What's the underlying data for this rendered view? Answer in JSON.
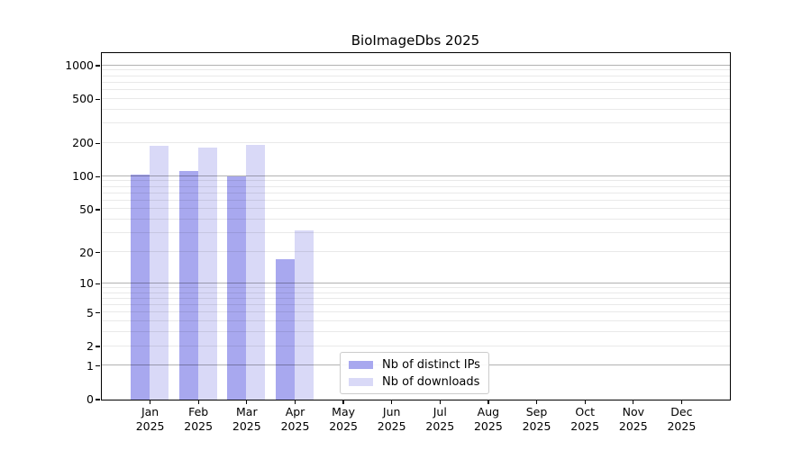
{
  "title": "BioImageDbs 2025",
  "chart_data": {
    "type": "bar",
    "title": "BioImageDbs 2025",
    "xlabel": "",
    "ylabel": "",
    "categories": [
      "Jan",
      "Feb",
      "Mar",
      "Apr",
      "May",
      "Jun",
      "Jul",
      "Aug",
      "Sep",
      "Oct",
      "Nov",
      "Dec"
    ],
    "category_sublabel": "2025",
    "series": [
      {
        "name": "Nb of distinct IPs",
        "color": "#a8a8ef",
        "values": [
          104,
          112,
          100,
          17,
          0,
          0,
          0,
          0,
          0,
          0,
          0,
          0
        ]
      },
      {
        "name": "Nb of downloads",
        "color": "#d9d9f7",
        "values": [
          190,
          183,
          192,
          32,
          0,
          0,
          0,
          0,
          0,
          0,
          0,
          0
        ]
      }
    ],
    "yscale": "log1p",
    "ylim": [
      0,
      1300
    ],
    "yticks": [
      0,
      1,
      2,
      5,
      10,
      20,
      50,
      100,
      200,
      500,
      1000
    ],
    "major_gridlines": [
      1,
      10,
      100,
      1000
    ],
    "minor_gridlines": [
      2,
      3,
      4,
      5,
      6,
      7,
      8,
      9,
      20,
      30,
      40,
      50,
      60,
      70,
      80,
      90,
      200,
      300,
      400,
      500,
      600,
      700,
      800,
      900
    ],
    "grid": true,
    "grid_above_bars": true,
    "legend_position": "lower center"
  },
  "legend": {
    "items": [
      {
        "label": "Nb of distinct IPs",
        "color": "#a8a8ef"
      },
      {
        "label": "Nb of downloads",
        "color": "#d9d9f7"
      }
    ]
  }
}
